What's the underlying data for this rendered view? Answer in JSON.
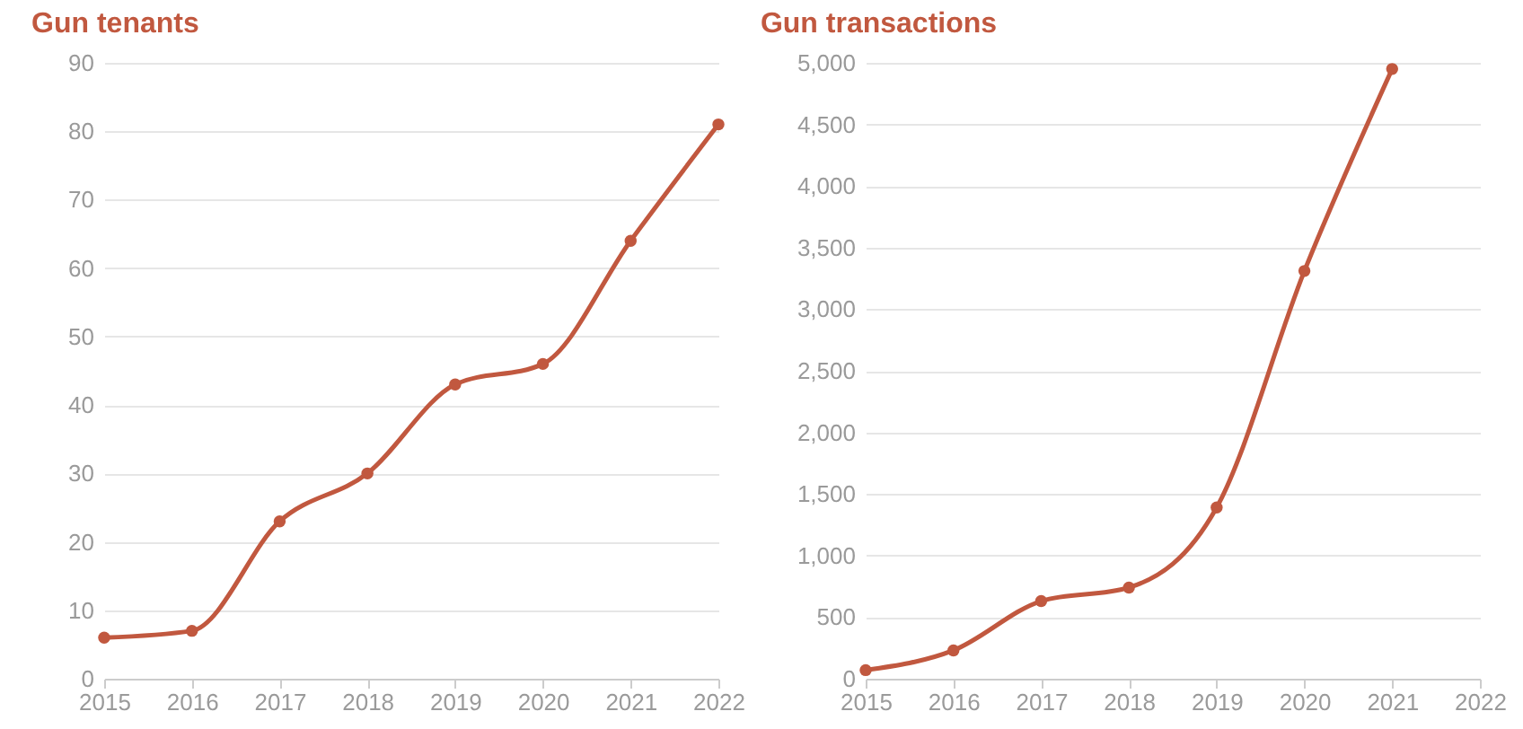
{
  "chart_data": [
    {
      "type": "line",
      "title": "Gun tenants",
      "x": [
        2015,
        2016,
        2017,
        2018,
        2019,
        2020,
        2021,
        2022
      ],
      "series": [
        {
          "color": "#c1583f",
          "values": [
            6,
            7,
            23,
            30,
            43,
            46,
            64,
            81
          ]
        }
      ],
      "xlim": [
        2015,
        2022
      ],
      "xticks": [
        2015,
        2016,
        2017,
        2018,
        2019,
        2020,
        2021,
        2022
      ],
      "ylim": [
        0,
        90
      ],
      "yticks": [
        0,
        10,
        20,
        30,
        40,
        50,
        60,
        70,
        80,
        90
      ],
      "grid": "y",
      "marker": "circle",
      "line_style": "solid",
      "legend": false
    },
    {
      "type": "line",
      "title": "Gun transactions",
      "x": [
        2015,
        2016,
        2017,
        2018,
        2019,
        2020,
        2021
      ],
      "series": [
        {
          "color": "#c1583f",
          "values": [
            70,
            230,
            630,
            740,
            1390,
            3310,
            4950
          ]
        }
      ],
      "xlim": [
        2015,
        2022
      ],
      "xticks": [
        2015,
        2016,
        2017,
        2018,
        2019,
        2020,
        2021,
        2022
      ],
      "ylim": [
        0,
        5000
      ],
      "yticks": [
        0,
        500,
        {
          "value": 1000,
          "label": "1,000"
        },
        {
          "value": 1500,
          "label": "1,500"
        },
        {
          "value": 2000,
          "label": "2,000"
        },
        {
          "value": 2500,
          "label": "2,500"
        },
        {
          "value": 3000,
          "label": "3,000"
        },
        {
          "value": 3500,
          "label": "3,500"
        },
        {
          "value": 4000,
          "label": "4,000"
        },
        {
          "value": 4500,
          "label": "4,500"
        },
        {
          "value": 5000,
          "label": "5,000"
        }
      ],
      "grid": "y",
      "marker": "circle",
      "line_style": "solid",
      "legend": false
    }
  ]
}
